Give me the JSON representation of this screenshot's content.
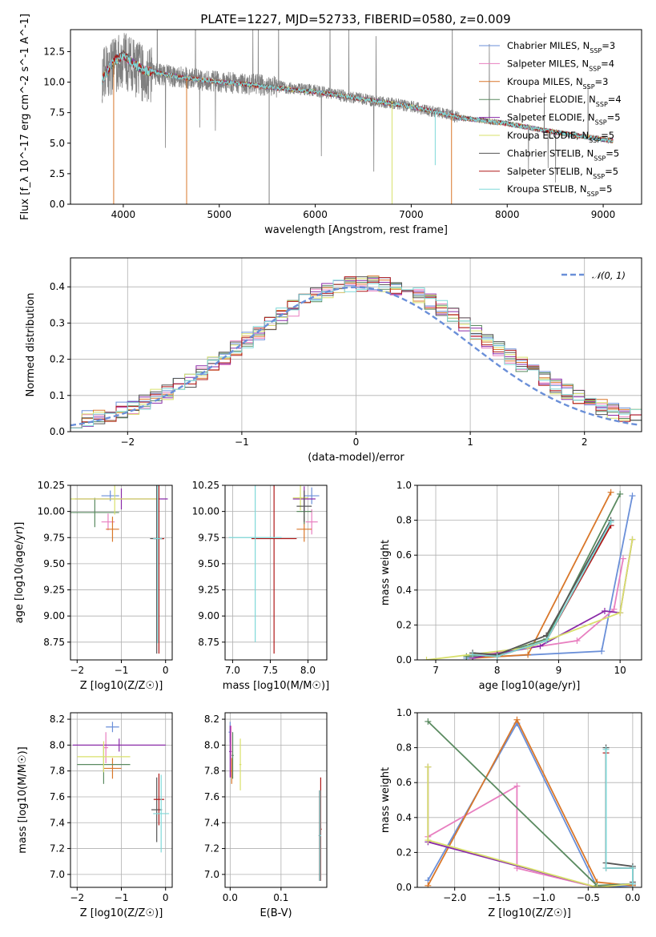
{
  "title": "PLATE=1227, MJD=52733, FIBERID=0580, z=0.009",
  "models": [
    {
      "name": "Chabrier MILES",
      "nssp": "3",
      "color": "#6a8fd8"
    },
    {
      "name": "Salpeter MILES",
      "nssp": "4",
      "color": "#e87fc0"
    },
    {
      "name": "Kroupa MILES",
      "nssp": "3",
      "color": "#d9772a"
    },
    {
      "name": "Chabrier ELODIE",
      "nssp": "4",
      "color": "#5a8a60"
    },
    {
      "name": "Salpeter ELODIE",
      "nssp": "5",
      "color": "#8a2aa8"
    },
    {
      "name": "Kroupa ELODIE",
      "nssp": "5",
      "color": "#d8e06a"
    },
    {
      "name": "Chabrier STELIB",
      "nssp": "5",
      "color": "#555555"
    },
    {
      "name": "Salpeter STELIB",
      "nssp": "5",
      "color": "#b01818"
    },
    {
      "name": "Kroupa STELIB",
      "nssp": "5",
      "color": "#7fd8d8"
    }
  ],
  "chart_data": [
    {
      "id": "spectrum",
      "type": "line",
      "title": "PLATE=1227, MJD=52733, FIBERID=0580, z=0.009",
      "xlabel": "wavelength [Angstrom, rest frame]",
      "ylabel": "Flux [f_λ 10^-17 erg cm^-2 s^-1 A^-1]",
      "xlim": [
        3450,
        9400
      ],
      "ylim": [
        0,
        14.3
      ],
      "xticks": [
        4000,
        5000,
        6000,
        7000,
        8000,
        9000
      ],
      "yticks": [
        0.0,
        2.5,
        5.0,
        7.5,
        10.0,
        12.5
      ],
      "xticklabels": [
        "4000",
        "5000",
        "6000",
        "7000",
        "8000",
        "9000"
      ],
      "yticklabels": [
        "0.0",
        "2.5",
        "5.0",
        "7.5",
        "10.0",
        "12.5"
      ],
      "data_continuum": {
        "x": [
          3780,
          3900,
          4000,
          4100,
          4200,
          4400,
          4600,
          4800,
          5000,
          5200,
          5500,
          6000,
          6500,
          7000,
          7500,
          8000,
          8500,
          9000,
          9100
        ],
        "y": [
          10.5,
          11.5,
          11.8,
          11.3,
          10.8,
          10.6,
          10.4,
          10.2,
          10.0,
          9.9,
          9.7,
          9.3,
          8.6,
          8.0,
          7.1,
          6.6,
          5.9,
          5.3,
          5.2
        ]
      },
      "model_continuum": {
        "x": [
          3780,
          3900,
          4000,
          4100,
          4200,
          4400,
          4600,
          4800,
          5000,
          5200,
          5500,
          6000,
          6500,
          7000,
          7500,
          8000,
          8500,
          9000,
          9100
        ],
        "y": [
          10.2,
          11.7,
          12.2,
          11.6,
          11.0,
          10.7,
          10.4,
          10.2,
          10.0,
          9.9,
          9.6,
          9.2,
          8.6,
          8.0,
          7.1,
          6.6,
          5.9,
          5.3,
          5.2
        ]
      }
    },
    {
      "id": "residuals",
      "type": "line",
      "xlabel": "(data-model)/error",
      "ylabel": "Normed distribution",
      "xlim": [
        -2.5,
        2.5
      ],
      "ylim": [
        0,
        0.48
      ],
      "xticks": [
        -2,
        -1,
        0,
        1,
        2
      ],
      "yticks": [
        0.0,
        0.1,
        0.2,
        0.3,
        0.4
      ],
      "xticklabels": [
        "−2",
        "−1",
        "0",
        "1",
        "2"
      ],
      "yticklabels": [
        "0.0",
        "0.1",
        "0.2",
        "0.3",
        "0.4"
      ],
      "legend": "𝒩(0, 1)",
      "legend_loc": "upper right",
      "bin_width": 0.1
    },
    {
      "id": "age_vs_Z",
      "type": "scatter",
      "xlabel": "Z [log10(Z/Z☉)]",
      "ylabel": "age  [log10(age/yr)]",
      "xlim": [
        -2.15,
        0.15
      ],
      "ylim": [
        8.58,
        10.25
      ],
      "xticks": [
        -2,
        -1,
        0
      ],
      "yticks": [
        8.75,
        9.0,
        9.25,
        9.5,
        9.75,
        10.0,
        10.25
      ],
      "xticklabels": [
        "−2",
        "−1",
        "0"
      ],
      "yticklabels": [
        "8.75",
        "9.00",
        "9.25",
        "9.50",
        "9.75",
        "10.00",
        "10.25"
      ]
    },
    {
      "id": "age_vs_mass",
      "type": "scatter",
      "xlabel": "mass [log10(M/M☉)]",
      "ylabel": "",
      "xlim": [
        6.9,
        8.25
      ],
      "ylim": [
        8.58,
        10.25
      ],
      "xticks": [
        7.0,
        7.5,
        8.0
      ],
      "yticks": [
        8.75,
        9.0,
        9.25,
        9.5,
        9.75,
        10.0,
        10.25
      ],
      "xticklabels": [
        "7.0",
        "7.5",
        "8.0"
      ],
      "yticklabels": [
        "8.75",
        "9.00",
        "9.25",
        "9.50",
        "9.75",
        "10.00",
        "10.25"
      ]
    },
    {
      "id": "weight_vs_age",
      "type": "line",
      "xlabel": "age  [log10(age/yr)]",
      "ylabel": "mass weight",
      "xlim": [
        6.7,
        10.35
      ],
      "ylim": [
        0,
        1.0
      ],
      "xticks": [
        7,
        8,
        9,
        10
      ],
      "yticks": [
        0.0,
        0.2,
        0.4,
        0.6,
        0.8,
        1.0
      ],
      "xticklabels": [
        "7",
        "8",
        "9",
        "10"
      ],
      "yticklabels": [
        "0.0",
        "0.2",
        "0.4",
        "0.6",
        "0.8",
        "1.0"
      ],
      "series": [
        {
          "name": "Chabrier MILES",
          "x": [
            7.5,
            9.7,
            10.2
          ],
          "y": [
            0.01,
            0.05,
            0.94
          ]
        },
        {
          "name": "Salpeter MILES",
          "x": [
            7.6,
            9.3,
            9.9,
            10.05
          ],
          "y": [
            0.02,
            0.11,
            0.29,
            0.58
          ]
        },
        {
          "name": "Kroupa MILES",
          "x": [
            7.6,
            8.5,
            9.85
          ],
          "y": [
            0.01,
            0.03,
            0.96
          ]
        },
        {
          "name": "Chabrier ELODIE",
          "x": [
            7.5,
            8.0,
            8.8,
            10.0
          ],
          "y": [
            0.02,
            0.03,
            0.12,
            0.95
          ]
        },
        {
          "name": "Salpeter ELODIE",
          "x": [
            7.6,
            8.7,
            9.75,
            10.0,
            10.2
          ],
          "y": [
            0.01,
            0.08,
            0.28,
            0.27,
            0.69
          ]
        },
        {
          "name": "Kroupa ELODIE",
          "x": [
            6.85,
            8.5,
            10.0,
            10.2
          ],
          "y": [
            0.0,
            0.07,
            0.27,
            0.69
          ]
        },
        {
          "name": "Chabrier STELIB",
          "x": [
            7.6,
            8.0,
            8.8,
            9.85
          ],
          "y": [
            0.04,
            0.03,
            0.14,
            0.8
          ]
        },
        {
          "name": "Salpeter STELIB",
          "x": [
            7.6,
            8.0,
            8.8,
            9.85
          ],
          "y": [
            0.03,
            0.02,
            0.11,
            0.77
          ]
        },
        {
          "name": "Kroupa STELIB",
          "x": [
            7.6,
            8.0,
            8.8,
            9.85
          ],
          "y": [
            0.03,
            0.02,
            0.11,
            0.79
          ]
        }
      ]
    },
    {
      "id": "mass_vs_Z",
      "type": "scatter",
      "xlabel": "Z [log10(Z/Z☉)]",
      "ylabel": "mass [log10(M/M☉)]",
      "xlim": [
        -2.15,
        0.15
      ],
      "ylim": [
        6.9,
        8.25
      ],
      "xticks": [
        -2,
        -1,
        0
      ],
      "yticks": [
        7.0,
        7.2,
        7.4,
        7.6,
        7.8,
        8.0,
        8.2
      ],
      "xticklabels": [
        "−2",
        "−1",
        "0"
      ],
      "yticklabels": [
        "7.0",
        "7.2",
        "7.4",
        "7.6",
        "7.8",
        "8.0",
        "8.2"
      ]
    },
    {
      "id": "mass_vs_ebv",
      "type": "scatter",
      "xlabel": "E(B-V)",
      "ylabel": "",
      "xlim": [
        -0.01,
        0.19
      ],
      "ylim": [
        6.9,
        8.25
      ],
      "xticks": [
        0.0,
        0.1
      ],
      "yticks": [
        7.0,
        7.2,
        7.4,
        7.6,
        7.8,
        8.0,
        8.2
      ],
      "xticklabels": [
        "0.0",
        "0.1"
      ],
      "yticklabels": [
        "7.0",
        "7.2",
        "7.4",
        "7.6",
        "7.8",
        "8.0",
        "8.2"
      ]
    },
    {
      "id": "weight_vs_Z",
      "type": "line",
      "xlabel": "Z [log10(Z/Z☉)]",
      "ylabel": "mass weight",
      "xlim": [
        -2.42,
        0.1
      ],
      "ylim": [
        0,
        1.0
      ],
      "xticks": [
        -2.0,
        -1.5,
        -1.0,
        -0.5,
        0.0
      ],
      "yticks": [
        0.0,
        0.2,
        0.4,
        0.6,
        0.8,
        1.0
      ],
      "xticklabels": [
        "−2.0",
        "−1.5",
        "−1.0",
        "−0.5",
        "0.0"
      ],
      "yticklabels": [
        "0.0",
        "0.2",
        "0.4",
        "0.6",
        "0.8",
        "1.0"
      ],
      "series": [
        {
          "name": "Chabrier MILES",
          "x": [
            -2.3,
            -1.3,
            -0.4,
            0.0
          ],
          "y": [
            0.04,
            0.94,
            0.0,
            0.01
          ]
        },
        {
          "name": "Salpeter MILES",
          "x": [
            -2.3,
            -1.3,
            -1.3,
            -0.4,
            0.0
          ],
          "y": [
            0.29,
            0.58,
            0.11,
            0.0,
            0.02
          ]
        },
        {
          "name": "Kroupa MILES",
          "x": [
            -2.3,
            -1.3,
            -0.4,
            0.0
          ],
          "y": [
            0.01,
            0.96,
            0.03,
            0.01
          ]
        },
        {
          "name": "Chabrier ELODIE",
          "x": [
            -2.3,
            -0.4,
            0.0
          ],
          "y": [
            0.95,
            0.01,
            0.02
          ]
        },
        {
          "name": "Salpeter ELODIE",
          "x": [
            -2.3,
            -2.3,
            -0.4,
            0.0
          ],
          "y": [
            0.69,
            0.26,
            0.0,
            0.02
          ]
        },
        {
          "name": "Kroupa ELODIE",
          "x": [
            -2.3,
            -2.3,
            -0.4,
            0.0
          ],
          "y": [
            0.69,
            0.27,
            0.0,
            0.02
          ]
        },
        {
          "name": "Chabrier STELIB",
          "x": [
            -0.3,
            -0.3,
            0.0,
            0.0
          ],
          "y": [
            0.8,
            0.14,
            0.12,
            0.03
          ]
        },
        {
          "name": "Salpeter STELIB",
          "x": [
            -0.3,
            -0.3,
            0.0,
            0.0
          ],
          "y": [
            0.77,
            0.11,
            0.11,
            0.02
          ]
        },
        {
          "name": "Kroupa STELIB",
          "x": [
            -0.3,
            -0.3,
            0.0,
            0.0
          ],
          "y": [
            0.79,
            0.11,
            0.11,
            0.02
          ]
        }
      ]
    }
  ]
}
